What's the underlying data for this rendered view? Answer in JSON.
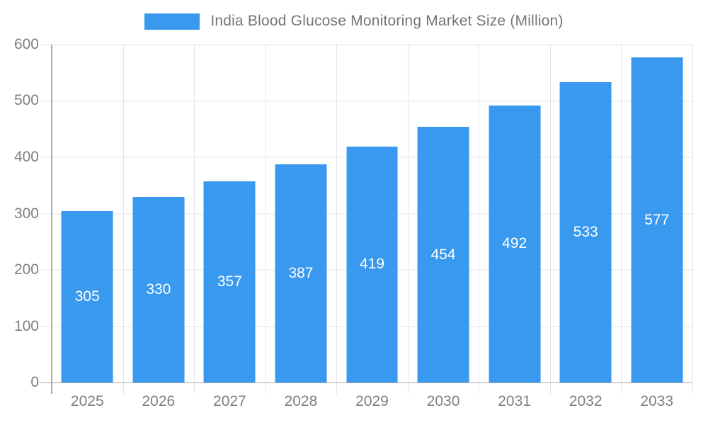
{
  "chart_data": {
    "type": "bar",
    "title": "India Blood Glucose Monitoring Market Size (Million)",
    "legend_label": "India Blood Glucose Monitoring Market Size (Million)",
    "legend_position": "top",
    "categories": [
      "2025",
      "2026",
      "2027",
      "2028",
      "2029",
      "2030",
      "2031",
      "2032",
      "2033"
    ],
    "values": [
      305,
      330,
      357,
      387,
      419,
      454,
      492,
      533,
      577
    ],
    "xlabel": "",
    "ylabel": "",
    "ylim": [
      0,
      600
    ],
    "ytick_step": 100,
    "yticks": [
      0,
      100,
      200,
      300,
      400,
      500,
      600
    ],
    "grid": true,
    "bar_labels_inside": true
  },
  "colors": {
    "bar": "#3999ee",
    "bar_label": "#ffffff",
    "axis_text": "#7f7f7f",
    "legend_text": "#757575",
    "gridline": "#e4e4e4",
    "axis_line": "#ababab"
  }
}
